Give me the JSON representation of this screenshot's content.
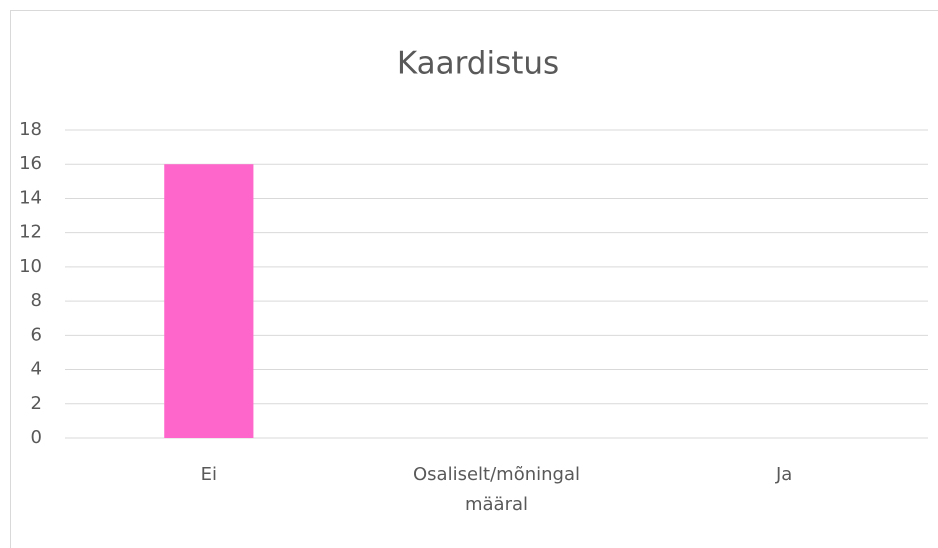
{
  "chart_data": {
    "type": "bar",
    "title": "Kaardistus",
    "categories": [
      "Ei",
      "Osaliselt/mõningal määral",
      "Ja"
    ],
    "values": [
      16,
      0,
      0
    ],
    "color": "#ff66cc",
    "ylim": [
      0,
      18
    ],
    "yticks": [
      0,
      2,
      4,
      6,
      8,
      10,
      12,
      14,
      16,
      18
    ],
    "grid": true
  }
}
